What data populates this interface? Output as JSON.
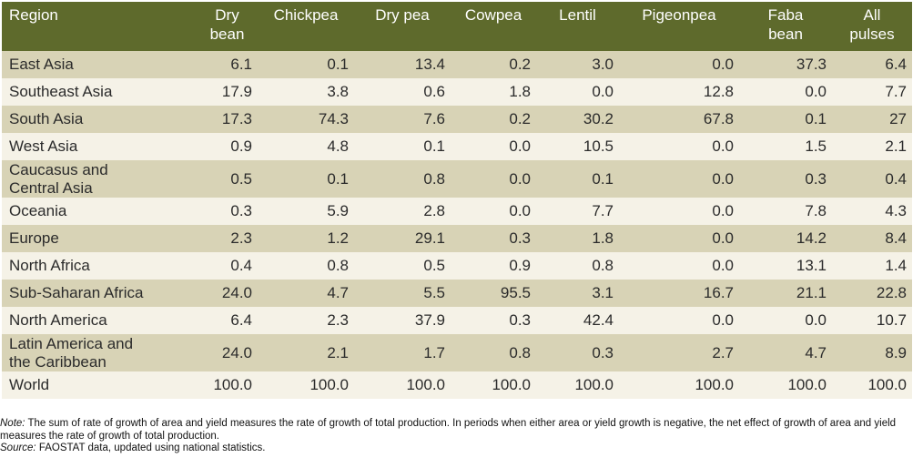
{
  "table": {
    "headers": [
      "Region",
      "Dry bean",
      "Chickpea",
      "Dry pea",
      "Cowpea",
      "Lentil",
      "Pigeonpea",
      "Faba bean",
      "All pulses"
    ],
    "header_lines": [
      [
        "Region"
      ],
      [
        "Dry",
        "bean"
      ],
      [
        "Chickpea"
      ],
      [
        "Dry pea"
      ],
      [
        "Cowpea"
      ],
      [
        "Lentil"
      ],
      [
        "Pigeonpea"
      ],
      [
        "Faba",
        "bean"
      ],
      [
        "All",
        "pulses"
      ]
    ],
    "rows": [
      {
        "region_lines": [
          "East Asia"
        ],
        "values": [
          "6.1",
          "0.1",
          "13.4",
          "0.2",
          "3.0",
          "0.0",
          "37.3",
          "6.4"
        ]
      },
      {
        "region_lines": [
          "Southeast Asia"
        ],
        "values": [
          "17.9",
          "3.8",
          "0.6",
          "1.8",
          "0.0",
          "12.8",
          "0.0",
          "7.7"
        ]
      },
      {
        "region_lines": [
          "South Asia"
        ],
        "values": [
          "17.3",
          "74.3",
          "7.6",
          "0.2",
          "30.2",
          "67.8",
          "0.1",
          "27"
        ]
      },
      {
        "region_lines": [
          "West Asia"
        ],
        "values": [
          "0.9",
          "4.8",
          "0.1",
          "0.0",
          "10.5",
          "0.0",
          "1.5",
          "2.1"
        ]
      },
      {
        "region_lines": [
          "Caucasus and",
          "Central Asia"
        ],
        "values": [
          "0.5",
          "0.1",
          "0.8",
          "0.0",
          "0.1",
          "0.0",
          "0.3",
          "0.4"
        ]
      },
      {
        "region_lines": [
          "Oceania"
        ],
        "values": [
          "0.3",
          "5.9",
          "2.8",
          "0.0",
          "7.7",
          "0.0",
          "7.8",
          "4.3"
        ]
      },
      {
        "region_lines": [
          "Europe"
        ],
        "values": [
          "2.3",
          "1.2",
          "29.1",
          "0.3",
          "1.8",
          "0.0",
          "14.2",
          "8.4"
        ]
      },
      {
        "region_lines": [
          "North Africa"
        ],
        "values": [
          "0.4",
          "0.8",
          "0.5",
          "0.9",
          "0.8",
          "0.0",
          "13.1",
          "1.4"
        ]
      },
      {
        "region_lines": [
          "Sub-Saharan Africa"
        ],
        "values": [
          "24.0",
          "4.7",
          "5.5",
          "95.5",
          "3.1",
          "16.7",
          "21.1",
          "22.8"
        ]
      },
      {
        "region_lines": [
          "North America"
        ],
        "values": [
          "6.4",
          "2.3",
          "37.9",
          "0.3",
          "42.4",
          "0.0",
          "0.0",
          "10.7"
        ]
      },
      {
        "region_lines": [
          "Latin America and",
          "the Caribbean"
        ],
        "values": [
          "24.0",
          "2.1",
          "1.7",
          "0.8",
          "0.3",
          "2.7",
          "4.7",
          "8.9"
        ]
      },
      {
        "region_lines": [
          "World"
        ],
        "values": [
          "100.0",
          "100.0",
          "100.0",
          "100.0",
          "100.0",
          "100.0",
          "100.0",
          "100.0"
        ]
      }
    ]
  },
  "notes": {
    "note_label": "Note:",
    "note_text": " The sum of rate of growth of area and yield measures the rate of growth of total production. In periods when either area or yield growth is negative, the net effect of growth of area and yield measures the rate of growth of total production.",
    "source_label": "Source:",
    "source_text": " FAOSTAT data, updated using national statistics."
  },
  "colors": {
    "header_bg": "#5e6a2c",
    "row_alt": "#d8d3b6",
    "row_plain": "#f5f2e7"
  }
}
